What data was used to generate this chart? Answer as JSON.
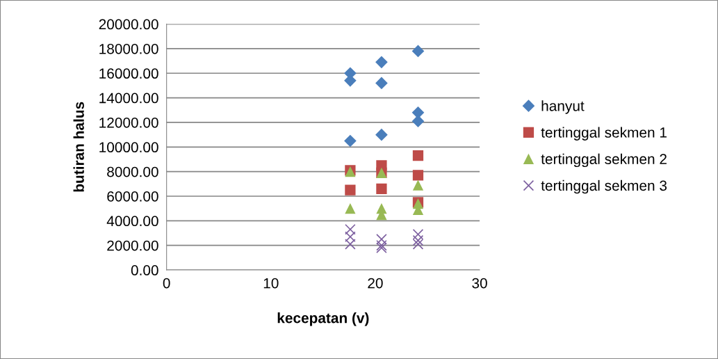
{
  "chart_data": {
    "type": "scatter",
    "xlabel": "kecepatan (v)",
    "ylabel": "butiran halus",
    "xlim": [
      0,
      30
    ],
    "xticks": [
      0,
      10,
      20,
      30
    ],
    "ylim": [
      0,
      20000
    ],
    "yticks": [
      {
        "value": 0,
        "label": "0.00"
      },
      {
        "value": 2000,
        "label": "2000.00"
      },
      {
        "value": 4000,
        "label": "4000.00"
      },
      {
        "value": 6000,
        "label": "6000.00"
      },
      {
        "value": 8000,
        "label": "8000.00"
      },
      {
        "value": 10000,
        "label": "10000.00"
      },
      {
        "value": 12000,
        "label": "12000.00"
      },
      {
        "value": 14000,
        "label": "14000.00"
      },
      {
        "value": 16000,
        "label": "16000.00"
      },
      {
        "value": 18000,
        "label": "18000.00"
      },
      {
        "value": 20000,
        "label": "20000.00"
      }
    ],
    "grid": "y",
    "legend": "right",
    "series": [
      {
        "name": "hanyut",
        "color": "#4a7ebb",
        "marker": "diamond",
        "x": [
          17.6,
          17.6,
          17.6,
          20.6,
          20.6,
          20.6,
          24.1,
          24.1,
          24.1
        ],
        "values": [
          16000,
          15400,
          10500,
          16900,
          15200,
          11000,
          17800,
          12800,
          12100
        ]
      },
      {
        "name": "tertinggal sekmen 1",
        "color": "#be4b48",
        "marker": "square",
        "x": [
          17.6,
          17.6,
          20.6,
          20.6,
          20.6,
          24.1,
          24.1,
          24.1
        ],
        "values": [
          8100,
          6500,
          8500,
          7900,
          6600,
          9300,
          7700,
          5500
        ]
      },
      {
        "name": "tertinggal sekmen 2",
        "color": "#98b954",
        "marker": "triangle",
        "x": [
          17.6,
          17.6,
          20.6,
          20.6,
          20.6,
          24.1,
          24.1,
          24.1
        ],
        "values": [
          8000,
          5000,
          7900,
          5000,
          4500,
          6900,
          5400,
          4900
        ]
      },
      {
        "name": "tertinggal sekmen 3",
        "color": "#7d60a0",
        "marker": "cross",
        "x": [
          17.6,
          17.6,
          17.6,
          20.6,
          20.6,
          20.6,
          24.1,
          24.1,
          24.1
        ],
        "values": [
          3300,
          2700,
          2100,
          2500,
          2000,
          1800,
          2900,
          2400,
          2100
        ]
      }
    ]
  }
}
